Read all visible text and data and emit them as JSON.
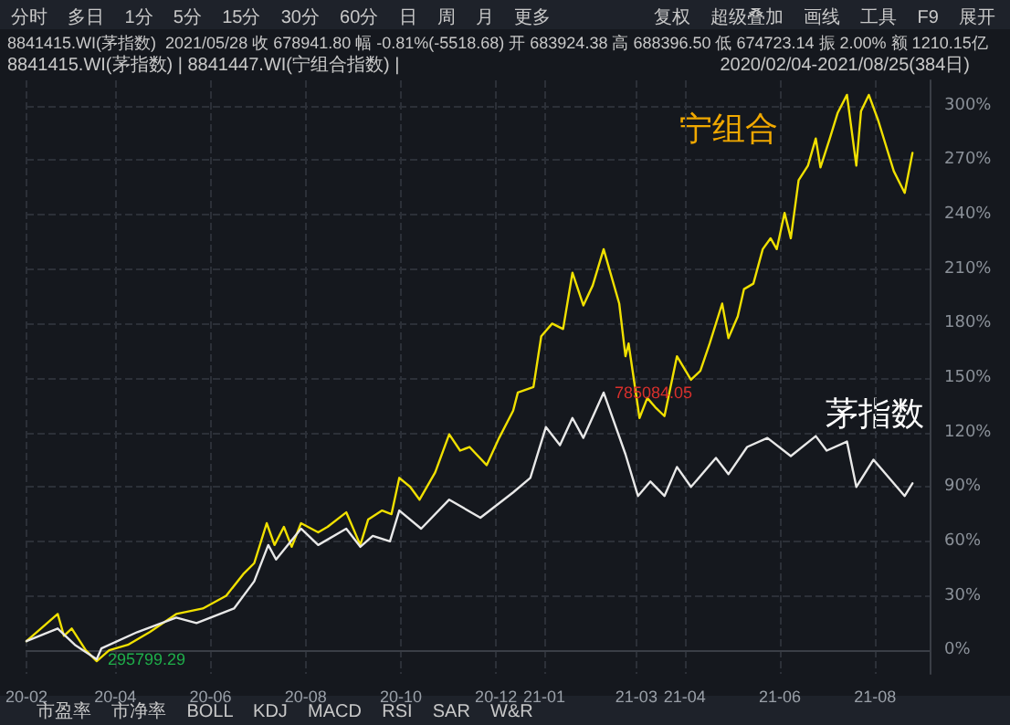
{
  "chart_data": {
    "type": "line",
    "annotations": [
      "分时 多日 1分 5分 15分 30分 60分 日 周 月 更多",
      "复权 超级叠加 画线 工具 F9 展开",
      "8841415.WI(茅指数)  2021/05/28 收 678941.80 幅 -0.81%(-5518.68) 开 683924.38 高 688396.50 低 674723.14 振 2.00% 额 1210.15亿",
      "8841415.WI(茅指数) | 8841447.WI(宁组合指数) |",
      "2020/02/04-2021/08/25(384日)",
      "市盈率 市净率 BOLL KDJ MACD RSI SAR W&R",
      {
        "text": "295799.29",
        "x": "2020-03-20",
        "y": -5
      },
      {
        "text": "785084.05",
        "x": "2021-02-08",
        "y": 142
      }
    ],
    "series": [
      {
        "name": "宁组合",
        "color": "#f0e000",
        "x": [
          "2020-02-04",
          "2020-02-24",
          "2020-02-28",
          "2020-03-04",
          "2020-03-13",
          "2020-03-20",
          "2020-03-28",
          "2020-04-09",
          "2020-04-23",
          "2020-05-10",
          "2020-05-27",
          "2020-06-11",
          "2020-06-22",
          "2020-06-29",
          "2020-07-07",
          "2020-07-12",
          "2020-07-18",
          "2020-07-23",
          "2020-07-29",
          "2020-08-09",
          "2020-08-15",
          "2020-08-27",
          "2020-09-05",
          "2020-09-10",
          "2020-09-19",
          "2020-09-25",
          "2020-09-30",
          "2020-10-07",
          "2020-10-13",
          "2020-10-23",
          "2020-11-01",
          "2020-11-08",
          "2020-11-14",
          "2020-11-25",
          "2020-12-03",
          "2020-12-12",
          "2020-12-15",
          "2020-12-25",
          "2020-12-30",
          "2021-01-06",
          "2021-01-13",
          "2021-01-19",
          "2021-01-26",
          "2021-02-01",
          "2021-02-08",
          "2021-02-18",
          "2021-02-22",
          "2021-02-24",
          "2021-03-03",
          "2021-03-08",
          "2021-03-13",
          "2021-03-19",
          "2021-03-27",
          "2021-04-05",
          "2021-04-11",
          "2021-04-17",
          "2021-04-25",
          "2021-04-29",
          "2021-05-05",
          "2021-05-09",
          "2021-05-15",
          "2021-05-21",
          "2021-05-26",
          "2021-05-30",
          "2021-06-04",
          "2021-06-08",
          "2021-06-13",
          "2021-06-19",
          "2021-06-24",
          "2021-06-27",
          "2021-07-03",
          "2021-07-08",
          "2021-07-14",
          "2021-07-20",
          "2021-07-23",
          "2021-07-28",
          "2021-08-03",
          "2021-08-13",
          "2021-08-20",
          "2021-08-25"
        ],
        "values": [
          5,
          20,
          8,
          12,
          0,
          -6,
          0,
          3,
          10,
          20,
          23,
          30,
          42,
          48,
          70,
          58,
          68,
          57,
          70,
          65,
          68,
          76,
          58,
          72,
          77,
          75,
          95,
          90,
          83,
          98,
          119,
          110,
          112,
          102,
          117,
          132,
          142,
          145,
          173,
          180,
          177,
          208,
          190,
          201,
          221,
          191,
          162,
          169,
          128,
          139,
          134,
          129,
          162,
          149,
          154,
          169,
          191,
          172,
          184,
          199,
          202,
          221,
          227,
          221,
          241,
          227,
          259,
          267,
          282,
          266,
          282,
          296,
          306,
          267,
          297,
          306,
          292,
          264,
          252,
          274
        ]
      },
      {
        "name": "茅指数",
        "color": "#e8e8e8",
        "x": [
          "2020-02-04",
          "2020-02-24",
          "2020-03-06",
          "2020-03-20",
          "2020-03-23",
          "2020-04-15",
          "2020-05-10",
          "2020-05-23",
          "2020-06-16",
          "2020-06-29",
          "2020-07-08",
          "2020-07-13",
          "2020-07-29",
          "2020-08-09",
          "2020-08-27",
          "2020-09-05",
          "2020-09-13",
          "2020-09-24",
          "2020-09-30",
          "2020-10-14",
          "2020-11-01",
          "2020-11-21",
          "2020-12-12",
          "2020-12-23",
          "2021-01-02",
          "2021-01-11",
          "2021-01-19",
          "2021-01-26",
          "2021-02-08",
          "2021-02-22",
          "2021-03-02",
          "2021-03-10",
          "2021-03-19",
          "2021-03-27",
          "2021-04-05",
          "2021-04-21",
          "2021-04-29",
          "2021-05-11",
          "2021-05-24",
          "2021-06-08",
          "2021-06-24",
          "2021-07-01",
          "2021-07-14",
          "2021-07-20",
          "2021-07-31",
          "2021-08-20",
          "2021-08-25"
        ],
        "values": [
          5,
          12,
          3,
          -5,
          1,
          10,
          18,
          15,
          23,
          38,
          58,
          50,
          67,
          58,
          67,
          57,
          63,
          60,
          77,
          67,
          83,
          73,
          87,
          95,
          123,
          113,
          128,
          117,
          142,
          108,
          85,
          93,
          85,
          101,
          90,
          106,
          97,
          112,
          117,
          107,
          118,
          110,
          115,
          90,
          105,
          85,
          92
        ]
      }
    ],
    "xlim": [
      "2020-02-04",
      "2021-09-05"
    ],
    "xticks": [
      {
        "value": "2020-02-04",
        "label": "20-02"
      },
      {
        "value": "2020-04-01",
        "label": "20-04"
      },
      {
        "value": "2020-06-01",
        "label": "20-06"
      },
      {
        "value": "2020-08-01",
        "label": "20-08"
      },
      {
        "value": "2020-10-01",
        "label": "20-10"
      },
      {
        "value": "2020-12-01",
        "label": "20-12"
      },
      {
        "value": "2021-01-01",
        "label": "21-01"
      },
      {
        "value": "2021-03-01",
        "label": "21-03"
      },
      {
        "value": "2021-04-01",
        "label": "21-04"
      },
      {
        "value": "2021-06-01",
        "label": "21-06"
      },
      {
        "value": "2021-08-01",
        "label": "21-08"
      }
    ],
    "ylim": [
      -13,
      314
    ],
    "yticks": [
      {
        "value": 0,
        "label": "0%"
      },
      {
        "value": 30,
        "label": "30%"
      },
      {
        "value": 60,
        "label": "60%"
      },
      {
        "value": 90,
        "label": "90%"
      },
      {
        "value": 120,
        "label": "120%"
      },
      {
        "value": 150,
        "label": "150%"
      },
      {
        "value": 180,
        "label": "180%"
      },
      {
        "value": 210,
        "label": "210%"
      },
      {
        "value": 240,
        "label": "240%"
      },
      {
        "value": 270,
        "label": "270%"
      },
      {
        "value": 300,
        "label": "300%"
      }
    ],
    "grid": true,
    "legend": false,
    "marker": "none",
    "line_style": "solid"
  }
}
